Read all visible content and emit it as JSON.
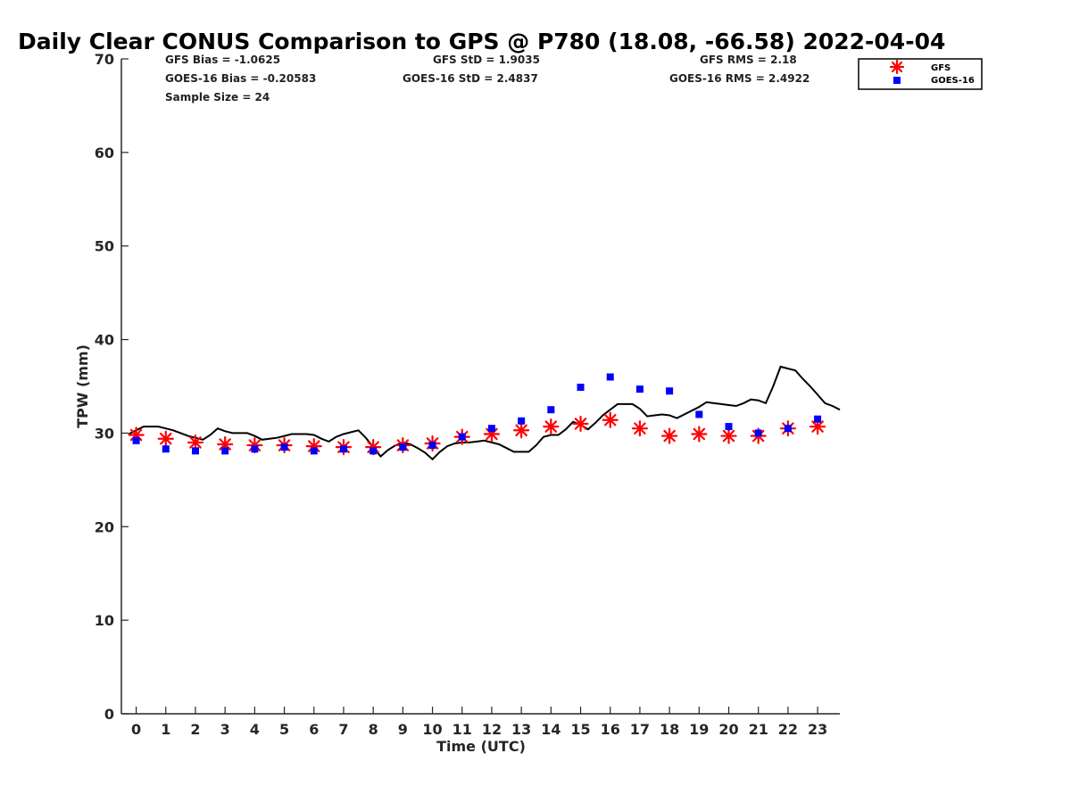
{
  "chart_data": {
    "type": "scatter",
    "title": "Daily Clear CONUS Comparison to GPS @ P780 (18.08, -66.58) 2022-04-04",
    "xlabel": "Time (UTC)",
    "ylabel": "TPW (mm)",
    "xlim": [
      -0.5,
      23.75
    ],
    "ylim": [
      0,
      70
    ],
    "xticks": [
      "0",
      "1",
      "2",
      "3",
      "4",
      "5",
      "6",
      "7",
      "8",
      "9",
      "10",
      "11",
      "12",
      "13",
      "14",
      "15",
      "16",
      "17",
      "18",
      "19",
      "20",
      "21",
      "22",
      "23"
    ],
    "yticks": [
      "0",
      "10",
      "20",
      "30",
      "40",
      "50",
      "60",
      "70"
    ],
    "grid": false,
    "legend_position": "top-right",
    "stats": {
      "gfs_bias": "GFS Bias = -1.0625",
      "goes_bias": "GOES-16 Bias = -0.20583",
      "sample_size": "Sample Size = 24",
      "gfs_std": "GFS StD = 1.9035",
      "goes_std": "GOES-16 StD = 2.4837",
      "gfs_rms": "GFS RMS = 2.18",
      "goes_rms": "GOES-16 RMS = 2.4922"
    },
    "series": [
      {
        "name": "GFS",
        "marker": "asterisk",
        "color": "#ff0000",
        "x": [
          0,
          1,
          2,
          3,
          4,
          5,
          6,
          7,
          8,
          9,
          10,
          11,
          12,
          13,
          14,
          15,
          16,
          17,
          18,
          19,
          20,
          21,
          22,
          23
        ],
        "y": [
          29.8,
          29.4,
          29.0,
          28.8,
          28.7,
          28.7,
          28.6,
          28.5,
          28.5,
          28.7,
          28.9,
          29.6,
          29.9,
          30.3,
          30.7,
          31.0,
          31.4,
          30.5,
          29.7,
          29.9,
          29.7,
          29.7,
          30.5,
          30.7
        ]
      },
      {
        "name": "GOES-16",
        "marker": "square",
        "color": "#0000ff",
        "x": [
          0,
          1,
          2,
          3,
          4,
          5,
          6,
          7,
          8,
          9,
          10,
          11,
          12,
          13,
          14,
          15,
          16,
          17,
          18,
          19,
          20,
          21,
          22,
          23
        ],
        "y": [
          29.2,
          28.3,
          28.1,
          28.1,
          28.3,
          28.5,
          28.1,
          28.3,
          28.1,
          28.5,
          28.7,
          29.6,
          30.5,
          31.3,
          32.5,
          34.9,
          36.0,
          34.7,
          34.5,
          32.0,
          30.7,
          30.0,
          30.5,
          31.5
        ]
      },
      {
        "marker": "line",
        "color": "#000000",
        "x": [
          -0.25,
          0,
          0.25,
          0.5,
          0.75,
          1,
          1.25,
          1.5,
          1.75,
          2,
          2.25,
          2.5,
          2.75,
          3,
          3.25,
          3.5,
          3.75,
          4,
          4.25,
          4.5,
          4.75,
          5,
          5.25,
          5.5,
          5.75,
          6,
          6.25,
          6.5,
          6.75,
          7,
          7.25,
          7.5,
          7.75,
          8,
          8.25,
          8.5,
          8.75,
          9,
          9.25,
          9.5,
          9.75,
          10,
          10.25,
          10.5,
          10.75,
          11,
          11.25,
          11.5,
          11.75,
          12,
          12.25,
          12.5,
          12.75,
          13,
          13.25,
          13.5,
          13.75,
          14,
          14.25,
          14.5,
          14.75,
          15,
          15.25,
          15.5,
          15.75,
          16,
          16.25,
          16.5,
          16.75,
          17,
          17.25,
          17.5,
          17.75,
          18,
          18.25,
          18.5,
          18.75,
          19,
          19.25,
          19.5,
          19.75,
          20,
          20.25,
          20.5,
          20.75,
          21,
          21.25,
          21.5,
          21.75,
          22,
          22.25,
          22.5,
          22.75,
          23,
          23.25,
          23.5,
          23.75
        ],
        "y": [
          29.9,
          30.3,
          30.7,
          30.7,
          30.7,
          30.5,
          30.3,
          30.0,
          29.7,
          29.5,
          29.3,
          29.8,
          30.5,
          30.2,
          30.0,
          30.0,
          30.0,
          29.7,
          29.3,
          29.4,
          29.5,
          29.7,
          29.9,
          29.9,
          29.9,
          29.8,
          29.4,
          29.1,
          29.6,
          29.9,
          30.1,
          30.3,
          29.5,
          28.5,
          27.5,
          28.2,
          28.7,
          29.0,
          28.8,
          28.4,
          27.9,
          27.2,
          28.0,
          28.6,
          28.9,
          29.0,
          29.0,
          29.1,
          29.2,
          29.0,
          28.8,
          28.4,
          28.0,
          28.0,
          28.0,
          28.7,
          29.6,
          29.8,
          29.8,
          30.4,
          31.2,
          30.9,
          30.4,
          31.1,
          31.9,
          32.5,
          33.1,
          33.1,
          33.1,
          32.6,
          31.8,
          31.9,
          32.0,
          31.9,
          31.6,
          32.0,
          32.4,
          32.8,
          33.3,
          33.2,
          33.1,
          33.0,
          32.9,
          33.2,
          33.6,
          33.5,
          33.2,
          35.0,
          37.1,
          36.9,
          36.7,
          35.8,
          35.0,
          34.1,
          33.2,
          32.9,
          32.5
        ]
      }
    ]
  }
}
